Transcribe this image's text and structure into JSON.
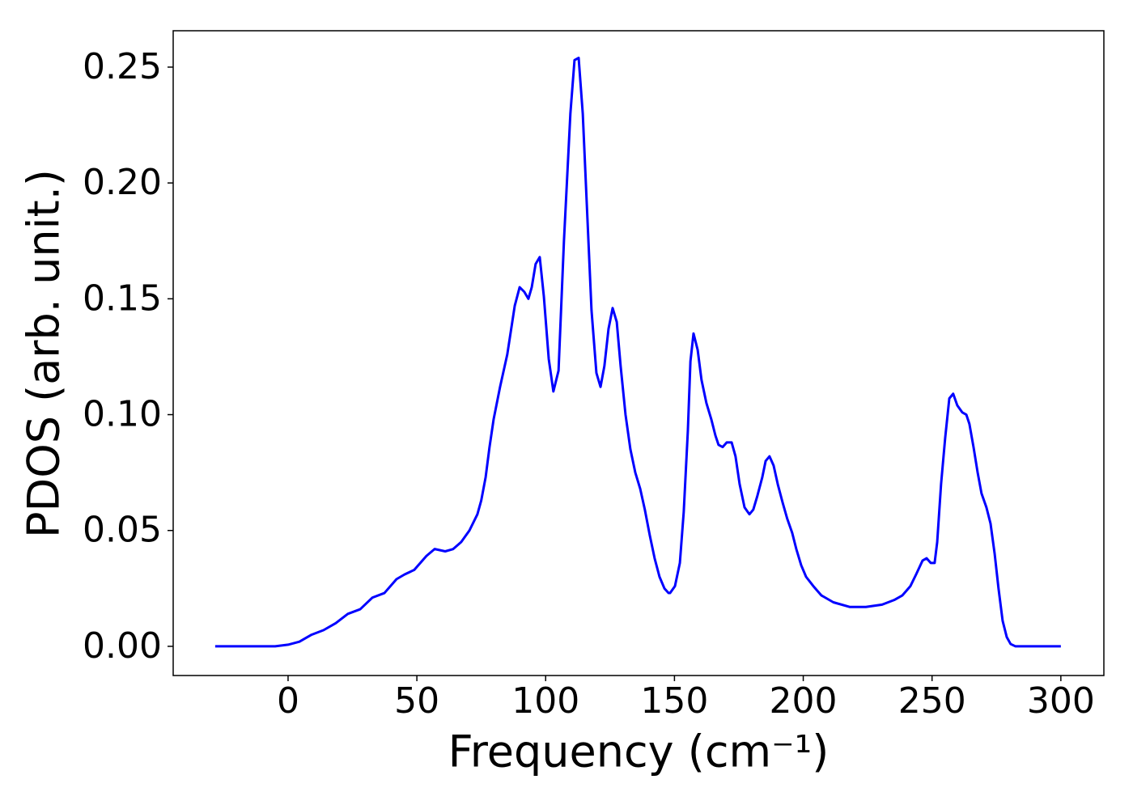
{
  "chart_data": {
    "type": "line",
    "xlabel": "Frequency (cm⁻¹)",
    "ylabel": "PDOS (arb. unit.)",
    "xlim": [
      -44.6,
      316.7
    ],
    "ylim": [
      -0.0126,
      0.2657
    ],
    "xticks": [
      0,
      50,
      100,
      150,
      200,
      250,
      300
    ],
    "yticks": [
      {
        "value": 0,
        "label": "0.00"
      },
      {
        "value": 0.05,
        "label": "0.05"
      },
      {
        "value": 0.1,
        "label": "0.10"
      },
      {
        "value": 0.15,
        "label": "0.15"
      },
      {
        "value": 0.2,
        "label": "0.20"
      },
      {
        "value": 0.25,
        "label": "0.25"
      }
    ],
    "grid": false,
    "x": [
      -28.3,
      -5,
      0,
      4.4,
      9.1,
      13.8,
      18.5,
      23.2,
      28,
      32.7,
      37.4,
      42.1,
      45.2,
      49,
      53.7,
      56.9,
      61,
      64.1,
      67.2,
      70.4,
      73.5,
      75,
      76.7,
      78.2,
      79.8,
      82.3,
      85.1,
      88,
      89.9,
      91.7,
      93.3,
      94.6,
      96.1,
      97.7,
      99.3,
      101.2,
      103,
      105,
      107.1,
      109.6,
      111.2,
      112.8,
      114.4,
      116.2,
      117.8,
      119.7,
      121.3,
      122.8,
      124.4,
      126,
      127.6,
      129.1,
      131,
      132.9,
      134.8,
      136.7,
      138.5,
      140.4,
      142.3,
      144.2,
      146.1,
      147.7,
      148.3,
      150.2,
      152.1,
      153.6,
      155.2,
      156.2,
      157.4,
      159,
      160.5,
      162.4,
      164.3,
      165.9,
      167.1,
      168.7,
      170.3,
      172.2,
      173.7,
      175.3,
      177.2,
      179.1,
      180.6,
      182.2,
      184.1,
      185.4,
      186.9,
      188.5,
      190.1,
      192,
      193.8,
      195.7,
      197.3,
      199.2,
      201.1,
      203.9,
      207,
      211.7,
      218,
      224.3,
      230.6,
      235.3,
      238.5,
      241.6,
      243.8,
      246.3,
      247.9,
      249.5,
      251,
      252,
      253.5,
      255.1,
      256.7,
      258.2,
      259.8,
      261.7,
      263.3,
      264.5,
      266.1,
      267.7,
      269.2,
      271.1,
      272.7,
      274.3,
      275.8,
      277.4,
      279,
      280.5,
      282.4,
      287.1,
      300
    ],
    "series": [
      {
        "color": "#0000ff",
        "values": [
          0,
          0,
          0.0007,
          0.002,
          0.005,
          0.007,
          0.01,
          0.014,
          0.016,
          0.021,
          0.023,
          0.029,
          0.031,
          0.033,
          0.039,
          0.042,
          0.041,
          0.042,
          0.045,
          0.05,
          0.057,
          0.063,
          0.073,
          0.086,
          0.098,
          0.112,
          0.126,
          0.147,
          0.155,
          0.153,
          0.15,
          0.155,
          0.165,
          0.168,
          0.151,
          0.124,
          0.11,
          0.119,
          0.175,
          0.23,
          0.253,
          0.254,
          0.23,
          0.185,
          0.145,
          0.118,
          0.112,
          0.121,
          0.137,
          0.146,
          0.14,
          0.121,
          0.1,
          0.085,
          0.075,
          0.068,
          0.059,
          0.048,
          0.038,
          0.03,
          0.025,
          0.023,
          0.023,
          0.026,
          0.036,
          0.058,
          0.093,
          0.123,
          0.135,
          0.128,
          0.115,
          0.105,
          0.098,
          0.091,
          0.087,
          0.086,
          0.088,
          0.088,
          0.082,
          0.07,
          0.06,
          0.057,
          0.059,
          0.065,
          0.073,
          0.08,
          0.082,
          0.078,
          0.07,
          0.062,
          0.055,
          0.049,
          0.042,
          0.035,
          0.03,
          0.026,
          0.022,
          0.019,
          0.017,
          0.017,
          0.018,
          0.02,
          0.022,
          0.026,
          0.031,
          0.037,
          0.038,
          0.036,
          0.036,
          0.045,
          0.07,
          0.09,
          0.107,
          0.109,
          0.104,
          0.101,
          0.1,
          0.096,
          0.086,
          0.075,
          0.066,
          0.06,
          0.053,
          0.04,
          0.025,
          0.011,
          0.004,
          0.001,
          0,
          0,
          0
        ]
      }
    ]
  }
}
